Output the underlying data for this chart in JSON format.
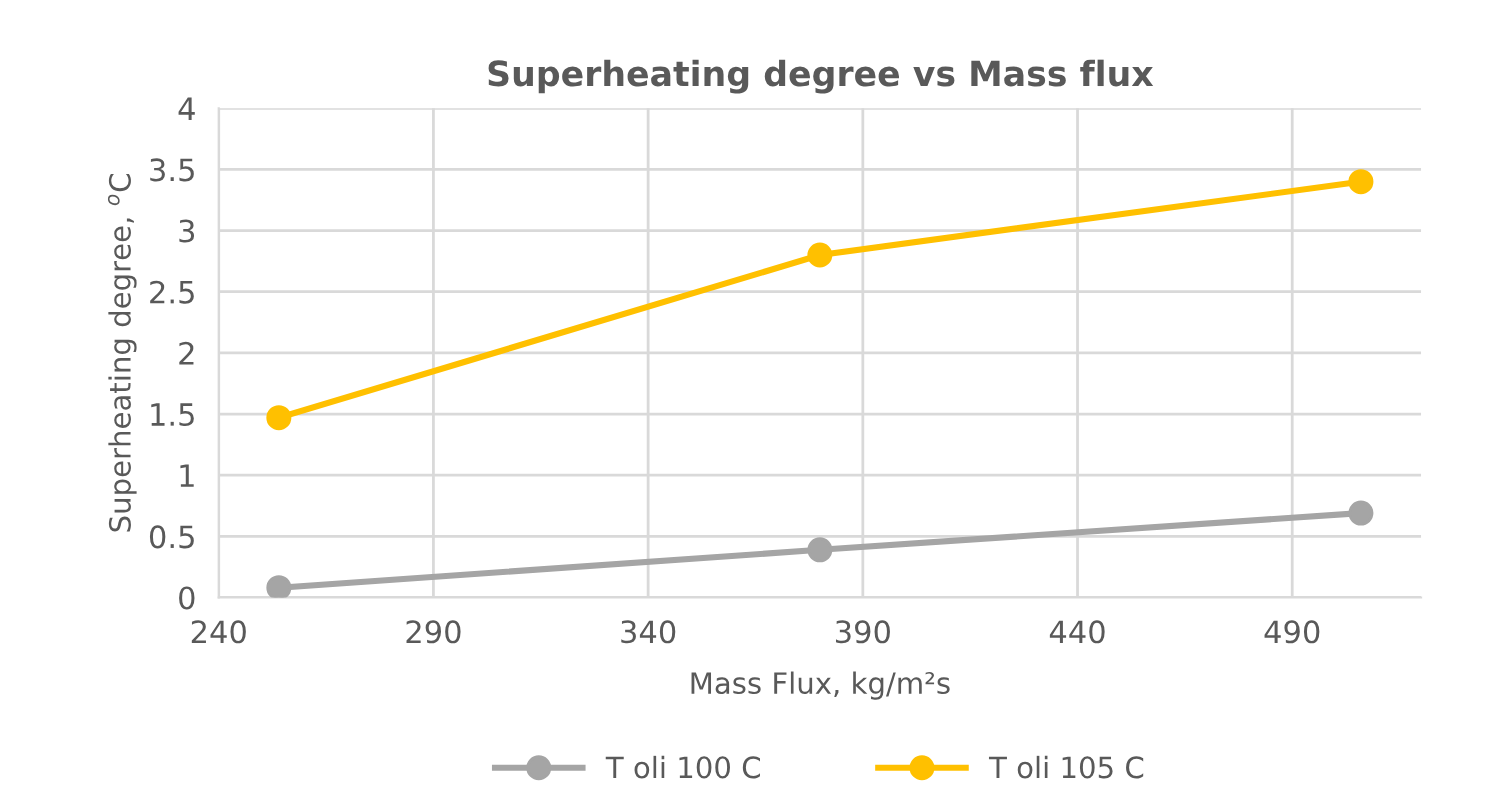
{
  "chart_data": {
    "type": "line",
    "title": "Superheating degree vs Mass flux",
    "xlabel": "Mass Flux, kg/m²s",
    "ylabel": "Superheating degree, $^{o}$C",
    "x": [
      254,
      380,
      506
    ],
    "series": [
      {
        "name": "T oli 100 C",
        "color": "#a5a5a5",
        "values": [
          0.08,
          0.39,
          0.69
        ]
      },
      {
        "name": "T oli 105 C",
        "color": "#ffc000",
        "values": [
          1.47,
          2.8,
          3.4
        ]
      }
    ],
    "xlim": [
      240,
      520
    ],
    "xticks": [
      240,
      290,
      340,
      390,
      440,
      490
    ],
    "ylim": [
      0,
      4
    ],
    "yticks": [
      0,
      0.5,
      1,
      1.5,
      2,
      2.5,
      3,
      3.5,
      4
    ],
    "grid": true,
    "legend": "bottom",
    "marker": "circle",
    "line_style": "solid"
  }
}
